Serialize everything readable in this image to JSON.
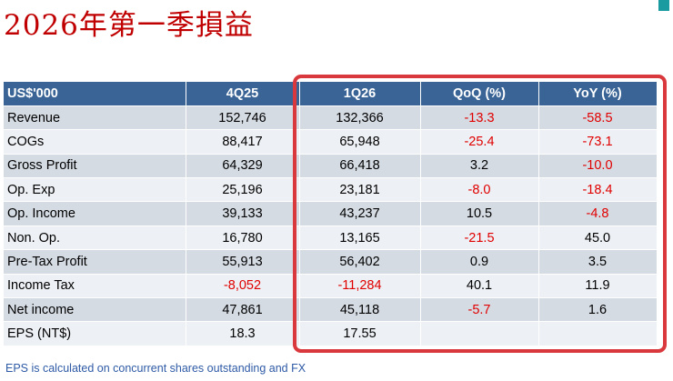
{
  "title": "2026年第一季損益",
  "table": {
    "headers": [
      "US$'000",
      "4Q25",
      "1Q26",
      "QoQ (%)",
      "YoY (%)"
    ],
    "rows": [
      {
        "label": "Revenue",
        "q4": "152,746",
        "q1": "132,366",
        "qoq": "-13.3",
        "yoy": "-58.5"
      },
      {
        "label": "COGs",
        "q4": "88,417",
        "q1": "65,948",
        "qoq": "-25.4",
        "yoy": "-73.1"
      },
      {
        "label": "Gross Profit",
        "q4": "64,329",
        "q1": "66,418",
        "qoq": "3.2",
        "yoy": "-10.0"
      },
      {
        "label": "Op. Exp",
        "q4": "25,196",
        "q1": "23,181",
        "qoq": "-8.0",
        "yoy": "-18.4"
      },
      {
        "label": "Op. Income",
        "q4": "39,133",
        "q1": "43,237",
        "qoq": "10.5",
        "yoy": "-4.8"
      },
      {
        "label": "Non. Op.",
        "q4": "16,780",
        "q1": "13,165",
        "qoq": "-21.5",
        "yoy": "45.0"
      },
      {
        "label": "Pre-Tax Profit",
        "q4": "55,913",
        "q1": "56,402",
        "qoq": "0.9",
        "yoy": "3.5"
      },
      {
        "label": "Income Tax",
        "q4": "-8,052",
        "q1": "-11,284",
        "qoq": "40.1",
        "yoy": "11.9"
      },
      {
        "label": "Net income",
        "q4": "47,861",
        "q1": "45,118",
        "qoq": "-5.7",
        "yoy": "1.6"
      },
      {
        "label": "EPS (NT$)",
        "q4": "18.3",
        "q1": "17.55",
        "qoq": "",
        "yoy": ""
      }
    ]
  },
  "footnote": "EPS is calculated on concurrent shares outstanding and FX",
  "colors": {
    "title": "#c00000",
    "header_bg": "#3a6496",
    "row_odd": "#d5dbe3",
    "row_even": "#edf0f4",
    "negative": "#e00000",
    "highlight_border": "#d9383c",
    "footnote": "#2e5aa6"
  }
}
